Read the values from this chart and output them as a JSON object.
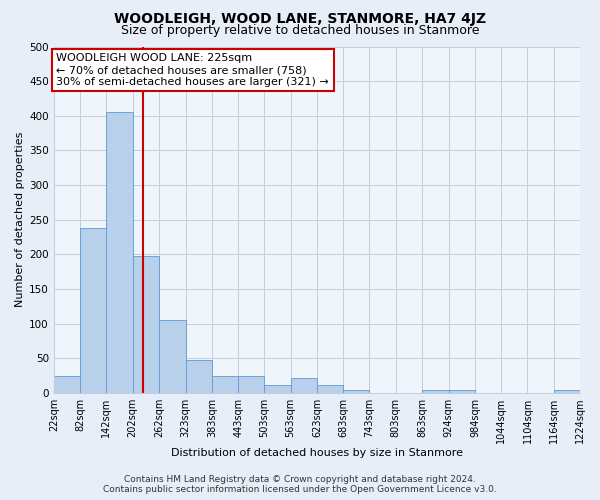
{
  "title": "WOODLEIGH, WOOD LANE, STANMORE, HA7 4JZ",
  "subtitle": "Size of property relative to detached houses in Stanmore",
  "xlabel": "Distribution of detached houses by size in Stanmore",
  "ylabel": "Number of detached properties",
  "bin_edges": [
    22,
    82,
    142,
    202,
    262,
    323,
    383,
    443,
    503,
    563,
    623,
    683,
    743,
    803,
    863,
    924,
    984,
    1044,
    1104,
    1164,
    1224
  ],
  "bar_heights": [
    25,
    238,
    405,
    198,
    105,
    48,
    25,
    25,
    12,
    22,
    11,
    5,
    0,
    0,
    5,
    4,
    0,
    0,
    0,
    5
  ],
  "tick_labels": [
    "22sqm",
    "82sqm",
    "142sqm",
    "202sqm",
    "262sqm",
    "323sqm",
    "383sqm",
    "443sqm",
    "503sqm",
    "563sqm",
    "623sqm",
    "683sqm",
    "743sqm",
    "803sqm",
    "863sqm",
    "924sqm",
    "984sqm",
    "1044sqm",
    "1104sqm",
    "1164sqm",
    "1224sqm"
  ],
  "bar_fill_color": "#b8d0ea",
  "bar_edge_color": "#5b9bd5",
  "vertical_line_x": 225,
  "vertical_line_color": "#cc0000",
  "ylim": [
    0,
    500
  ],
  "annotation_text_line1": "WOODLEIGH WOOD LANE: 225sqm",
  "annotation_text_line2": "← 70% of detached houses are smaller (758)",
  "annotation_text_line3": "30% of semi-detached houses are larger (321) →",
  "annotation_box_color": "#cc0000",
  "annotation_bg_color": "#ffffff",
  "footer_line1": "Contains HM Land Registry data © Crown copyright and database right 2024.",
  "footer_line2": "Contains public sector information licensed under the Open Government Licence v3.0.",
  "bg_color": "#e8eef8",
  "plot_bg_color": "#f0f5fc",
  "grid_color": "#c0cfe0",
  "title_fontsize": 10,
  "subtitle_fontsize": 9,
  "axis_label_fontsize": 8,
  "tick_fontsize": 7,
  "annotation_fontsize": 8,
  "footer_fontsize": 6.5
}
